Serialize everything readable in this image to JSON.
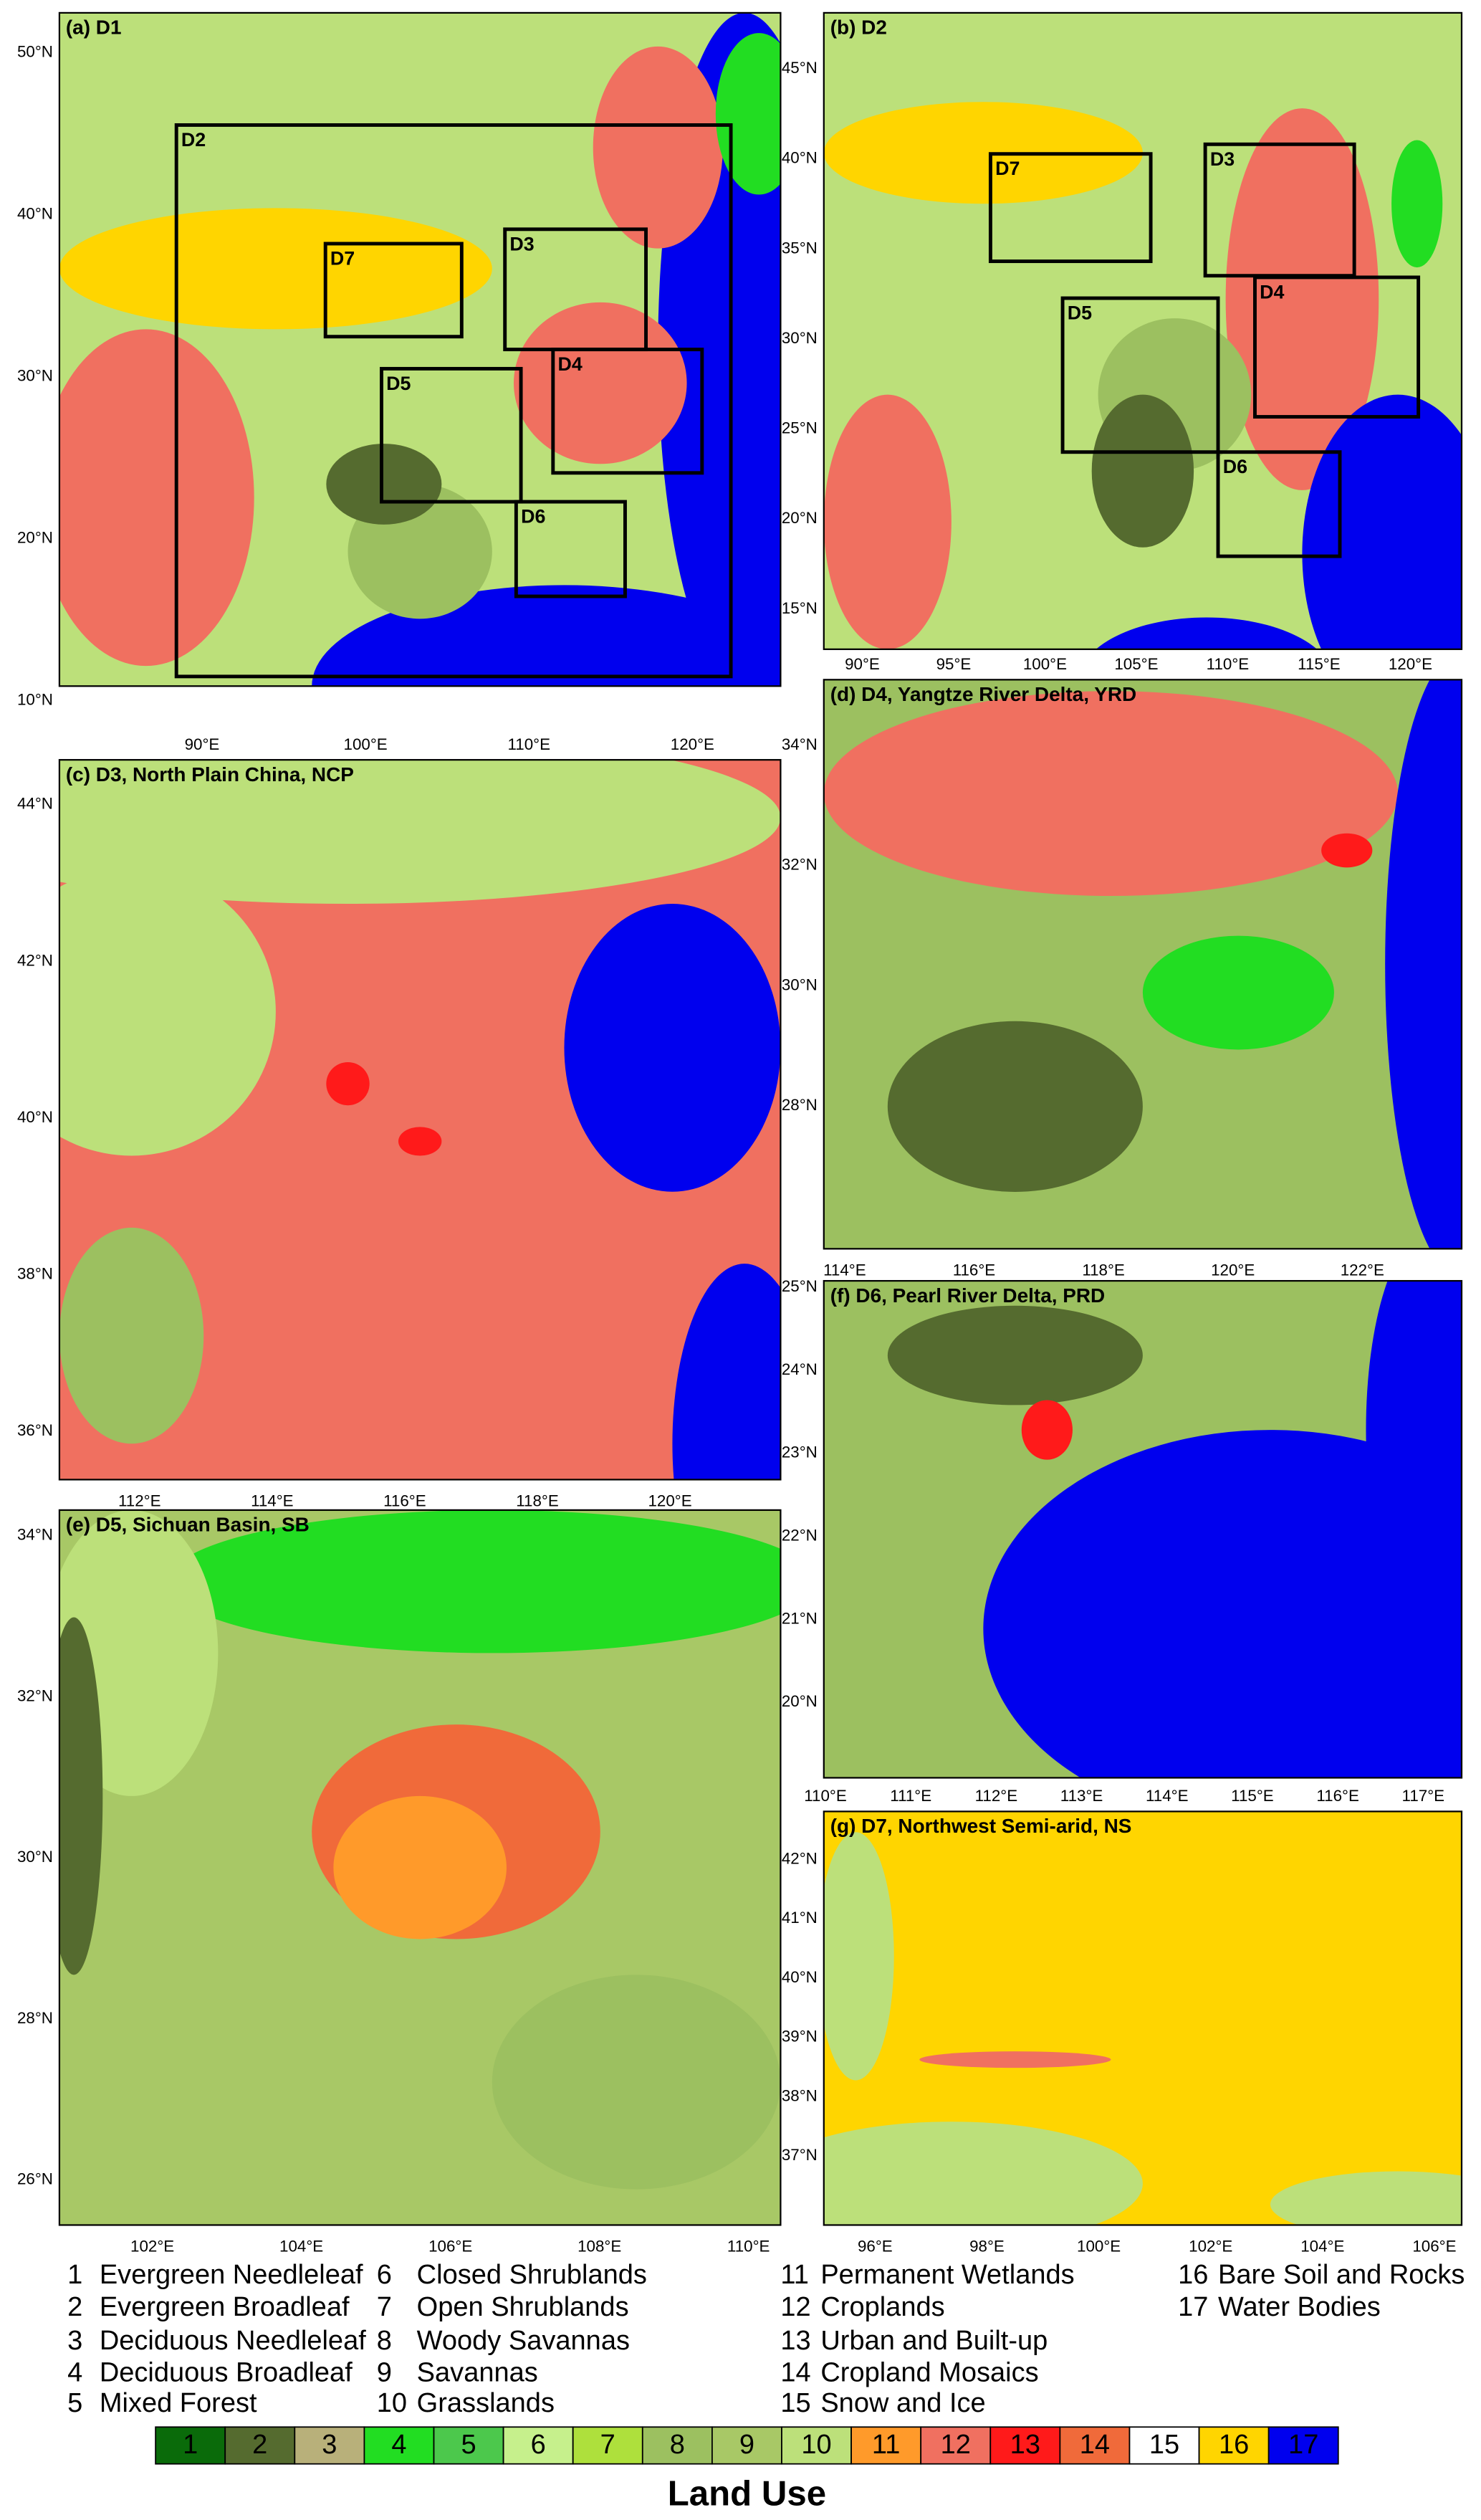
{
  "panels": [
    {
      "title": "(a) D1",
      "yticks": [
        "50°N",
        "40°N",
        "30°N",
        "20°N",
        "10°N"
      ],
      "xticks": [
        "90°E",
        "100°E",
        "110°E",
        "120°E"
      ],
      "boxes": [
        {
          "label": "D2"
        },
        {
          "label": "D7"
        },
        {
          "label": "D3"
        },
        {
          "label": "D5"
        },
        {
          "label": "D4"
        },
        {
          "label": "D6"
        }
      ]
    },
    {
      "title": "(b) D2",
      "yticks": [
        "45°N",
        "40°N",
        "35°N",
        "30°N",
        "25°N",
        "20°N",
        "15°N"
      ],
      "xticks": [
        "90°E",
        "95°E",
        "100°E",
        "105°E",
        "110°E",
        "115°E",
        "120°E"
      ],
      "boxes": [
        {
          "label": "D7"
        },
        {
          "label": "D3"
        },
        {
          "label": "D5"
        },
        {
          "label": "D4"
        },
        {
          "label": "D6"
        }
      ]
    },
    {
      "title": "(c) D3, North Plain China, NCP",
      "yticks": [
        "44°N",
        "42°N",
        "40°N",
        "38°N",
        "36°N"
      ],
      "xticks": [
        "112°E",
        "114°E",
        "116°E",
        "118°E",
        "120°E"
      ],
      "boxes": []
    },
    {
      "title": "(d) D4, Yangtze River Delta, YRD",
      "yticks": [
        "34°N",
        "32°N",
        "30°N",
        "28°N"
      ],
      "xticks": [
        "114°E",
        "116°E",
        "118°E",
        "120°E",
        "122°E"
      ],
      "boxes": []
    },
    {
      "title": "(e) D5, Sichuan Basin, SB",
      "yticks": [
        "34°N",
        "32°N",
        "30°N",
        "28°N",
        "26°N"
      ],
      "xticks": [
        "102°E",
        "104°E",
        "106°E",
        "108°E",
        "110°E"
      ],
      "boxes": []
    },
    {
      "title": "(f) D6, Pearl River Delta, PRD",
      "yticks": [
        "25°N",
        "24°N",
        "23°N",
        "22°N",
        "21°N",
        "20°N"
      ],
      "xticks": [
        "110°E",
        "111°E",
        "112°E",
        "113°E",
        "114°E",
        "115°E",
        "116°E",
        "117°E"
      ],
      "boxes": []
    },
    {
      "title": "(g) D7, Northwest Semi-arid, NS",
      "yticks": [
        "42°N",
        "41°N",
        "40°N",
        "39°N",
        "38°N",
        "37°N"
      ],
      "xticks": [
        "96°E",
        "98°E",
        "100°E",
        "102°E",
        "104°E",
        "106°E"
      ],
      "boxes": []
    }
  ],
  "legend": {
    "items": [
      {
        "number": "1",
        "name": "Evergreen Needleleaf"
      },
      {
        "number": "2",
        "name": "Evergreen Broadleaf"
      },
      {
        "number": "3",
        "name": "Deciduous Needleleaf"
      },
      {
        "number": "4",
        "name": "Deciduous Broadleaf"
      },
      {
        "number": "5",
        "name": "Mixed Forest"
      },
      {
        "number": "6",
        "name": "Closed Shrublands"
      },
      {
        "number": "7",
        "name": "Open Shrublands"
      },
      {
        "number": "8",
        "name": "Woody Savannas"
      },
      {
        "number": "9",
        "name": "Savannas"
      },
      {
        "number": "10",
        "name": "Grasslands"
      },
      {
        "number": "11",
        "name": "Permanent Wetlands"
      },
      {
        "number": "12",
        "name": "Croplands"
      },
      {
        "number": "13",
        "name": "Urban and Built-up"
      },
      {
        "number": "14",
        "name": "Cropland Mosaics"
      },
      {
        "number": "15",
        "name": "Snow and Ice"
      },
      {
        "number": "16",
        "name": "Bare Soil and Rocks"
      },
      {
        "number": "17",
        "name": "Water Bodies"
      }
    ],
    "colorbar": {
      "labels": [
        "1",
        "2",
        "3",
        "4",
        "5",
        "6",
        "7",
        "8",
        "9",
        "10",
        "11",
        "12",
        "13",
        "14",
        "15",
        "16",
        "17"
      ],
      "colors": [
        "#0a6b0a",
        "#556b2f",
        "#b8b07a",
        "#22dd22",
        "#4cc84c",
        "#c6f08c",
        "#aee03c",
        "#9cc060",
        "#a8c866",
        "#bce07a",
        "#ff9a2a",
        "#f07060",
        "#ff1a1a",
        "#f06a3a",
        "#ffffff",
        "#ffd500",
        "#0000ee"
      ]
    },
    "title": "Land Use"
  }
}
